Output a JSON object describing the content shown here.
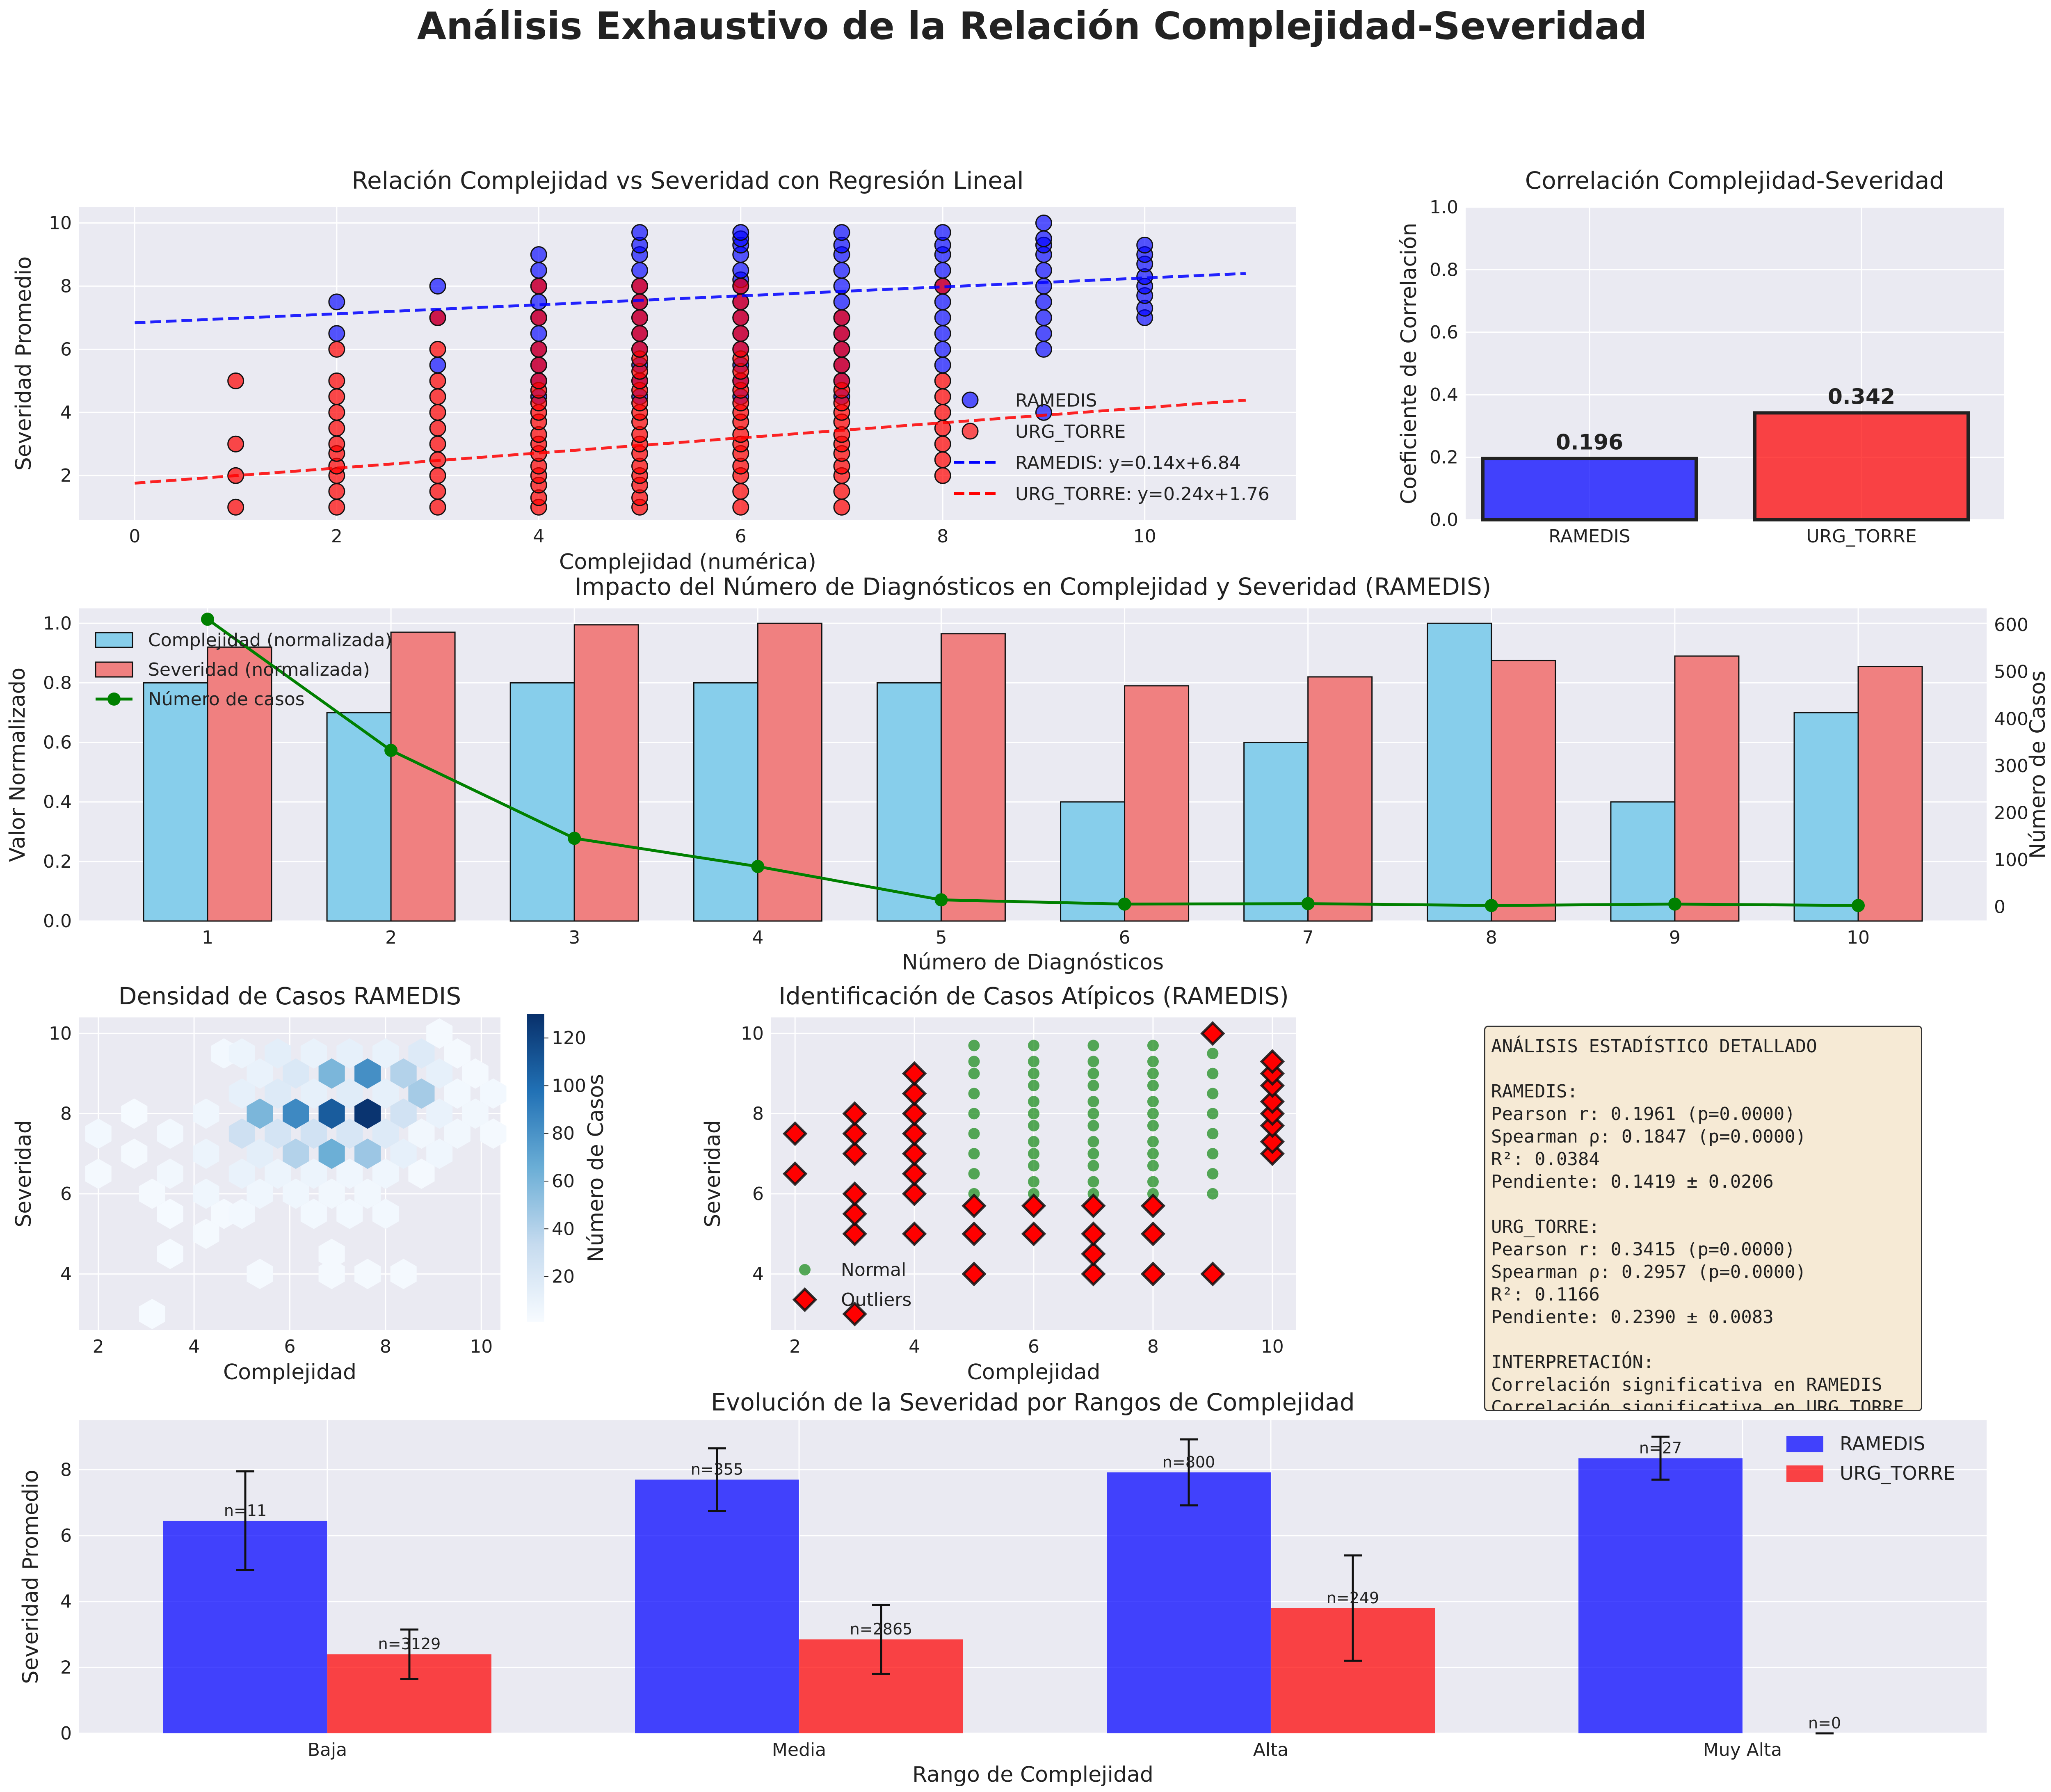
{
  "figure": {
    "title": "Análisis Exhaustivo de la Relación Complejidad-Severidad"
  },
  "colors": {
    "ramedis": "#0000ff",
    "urg": "#ff0000",
    "light_blue": "#87ceeb",
    "light_red": "#f08080",
    "green": "#008000",
    "panel_bg": "#eaeaf2"
  },
  "stats_box": {
    "lines": [
      "ANÁLISIS ESTADÍSTICO DETALLADO",
      "",
      "RAMEDIS:",
      "Pearson r: 0.1961 (p=0.0000)",
      "Spearman ρ: 0.1847 (p=0.0000)",
      "R²: 0.0384",
      "Pendiente: 0.1419 ± 0.0206",
      "",
      "URG_TORRE:",
      "Pearson r: 0.3415 (p=0.0000)",
      "Spearman ρ: 0.2957 (p=0.0000)",
      "R²: 0.1166",
      "Pendiente: 0.2390 ± 0.0083",
      "",
      "INTERPRETACIÓN:",
      "Correlación significativa en RAMEDIS",
      "Correlación significativa en URG_TORRE"
    ]
  },
  "chart_data": [
    {
      "id": "scatter_regression",
      "type": "scatter",
      "title": "Relación Complejidad vs Severidad con Regresión Lineal",
      "xlabel": "Complejidad (numérica)",
      "ylabel": "Severidad Promedio",
      "xlim": [
        -0.55,
        11.5
      ],
      "ylim": [
        0.6,
        10.5
      ],
      "xticks": [
        0,
        2,
        4,
        6,
        8,
        10
      ],
      "yticks": [
        2,
        4,
        6,
        8,
        10
      ],
      "legend": "center-right",
      "series": [
        {
          "name": "RAMEDIS",
          "color": "#0000ff",
          "points": {
            "2": [
              6.5,
              7.5
            ],
            "3": [
              5.5,
              7,
              8
            ],
            "4": [
              4.5,
              5,
              5.5,
              6,
              6.5,
              7,
              7.5,
              8,
              8.5,
              9
            ],
            "5": [
              4.5,
              5,
              5.5,
              6,
              6.5,
              7,
              7.5,
              8,
              8.5,
              9,
              9.3,
              9.7
            ],
            "6": [
              4.5,
              5,
              5.5,
              6,
              6.5,
              7,
              7.5,
              8,
              8.2,
              8.5,
              9,
              9.3,
              9.5,
              9.7
            ],
            "7": [
              4.5,
              5,
              5.5,
              6,
              6.5,
              7,
              7.5,
              8,
              8.5,
              9,
              9.3,
              9.7
            ],
            "8": [
              5.5,
              6,
              6.5,
              7,
              7.5,
              8,
              8.5,
              9,
              9.3,
              9.7
            ],
            "9": [
              4,
              6,
              6.5,
              7,
              7.5,
              8,
              8.5,
              9,
              9.3,
              9.5,
              10
            ],
            "10": [
              7,
              7.3,
              7.7,
              8,
              8.3,
              8.7,
              9,
              9.3
            ]
          }
        },
        {
          "name": "URG_TORRE",
          "color": "#ff0000",
          "points": {
            "1": [
              1,
              2,
              3,
              5
            ],
            "2": [
              1,
              1.5,
              2,
              2.3,
              2.7,
              3,
              3.5,
              4,
              4.5,
              5,
              6
            ],
            "3": [
              1,
              1.5,
              2,
              2.5,
              3,
              3.5,
              4,
              4.5,
              5,
              6,
              7
            ],
            "4": [
              1,
              1.3,
              1.7,
              2,
              2.3,
              2.7,
              3,
              3.3,
              3.7,
              4,
              4.3,
              4.7,
              5,
              5.5,
              6,
              7,
              8
            ],
            "5": [
              1,
              1.3,
              1.7,
              2,
              2.3,
              2.7,
              3,
              3.3,
              3.7,
              4,
              4.3,
              4.7,
              5,
              5.3,
              5.7,
              6,
              6.5,
              7,
              7.5,
              8
            ],
            "6": [
              1,
              1.5,
              2,
              2.3,
              2.7,
              3,
              3.3,
              3.7,
              4,
              4.3,
              4.7,
              5,
              5.3,
              5.7,
              6,
              6.5,
              7,
              7.5,
              8
            ],
            "7": [
              1,
              1.5,
              2,
              2.3,
              2.7,
              3,
              3.3,
              3.7,
              4,
              4.3,
              4.7,
              5,
              5.5,
              6,
              6.5,
              7
            ],
            "8": [
              2,
              2.5,
              3,
              3.5,
              4,
              4.5,
              5,
              8
            ]
          }
        }
      ],
      "regression": [
        {
          "name": "RAMEDIS: y=0.14x+6.84",
          "slope": 0.1419,
          "intercept": 6.84,
          "x": [
            0,
            11
          ],
          "color": "#0000ff"
        },
        {
          "name": "URG_TORRE: y=0.24x+1.76",
          "slope": 0.239,
          "intercept": 1.76,
          "x": [
            0,
            11
          ],
          "color": "#ff0000"
        }
      ]
    },
    {
      "id": "correlation_bars",
      "type": "bar",
      "title": "Correlación Complejidad-Severidad",
      "xlabel": "",
      "ylabel": "Coeficiente de Correlación",
      "categories": [
        "RAMEDIS",
        "URG_TORRE"
      ],
      "values": [
        0.196,
        0.342
      ],
      "labels": [
        "0.196",
        "0.342"
      ],
      "colors": [
        "#0000ff",
        "#ff0000"
      ],
      "ylim": [
        0,
        1
      ],
      "yticks": [
        0.0,
        0.2,
        0.4,
        0.6,
        0.8,
        1.0
      ]
    },
    {
      "id": "diagnostics_impact",
      "type": "bar",
      "title": "Impacto del Número de Diagnósticos en Complejidad y Severidad (RAMEDIS)",
      "xlabel": "Número de Diagnósticos",
      "ylabel": "Valor Normalizado",
      "ylabel_right": "Número de Casos",
      "categories": [
        "1",
        "2",
        "3",
        "4",
        "5",
        "6",
        "7",
        "8",
        "9",
        "10"
      ],
      "series": [
        {
          "name": "Complejidad (normalizada)",
          "color": "#87ceeb",
          "values": [
            0.8,
            0.7,
            0.8,
            0.8,
            0.8,
            0.4,
            0.6,
            1.0,
            0.4,
            0.7
          ]
        },
        {
          "name": "Severidad (normalizada)",
          "color": "#f08080",
          "values": [
            0.92,
            0.97,
            0.995,
            1.0,
            0.965,
            0.79,
            0.82,
            0.875,
            0.89,
            0.855
          ]
        },
        {
          "name": "Número de casos",
          "color": "#008000",
          "axis": "right",
          "values": [
            612,
            333,
            146,
            86,
            15,
            6,
            7,
            3,
            6,
            3
          ]
        }
      ],
      "ylim": [
        0,
        1.05
      ],
      "yticks": [
        0.0,
        0.2,
        0.4,
        0.6,
        0.8,
        1.0
      ],
      "ylim_right": [
        -30,
        635
      ],
      "yticks_right": [
        0,
        100,
        200,
        300,
        400,
        500,
        600
      ],
      "legend": "top-left"
    },
    {
      "id": "density_hexbin",
      "type": "heatmap",
      "title": "Densidad de Casos RAMEDIS",
      "xlabel": "Complejidad",
      "ylabel": "Severidad",
      "colorbar_label": "Número de Casos",
      "colorbar_ticks": [
        20,
        40,
        60,
        80,
        100,
        120
      ],
      "colorbar_range": [
        1,
        130
      ],
      "xlim": [
        1.6,
        10.4
      ],
      "ylim": [
        2.6,
        10.4
      ],
      "xticks": [
        2,
        4,
        6,
        8,
        10
      ],
      "yticks": [
        4,
        6,
        8,
        10
      ],
      "cells": [
        {
          "x": 2,
          "y": 6.5,
          "v": 3
        },
        {
          "x": 2,
          "y": 7.5,
          "v": 4
        },
        {
          "x": 2.75,
          "y": 7,
          "v": 3
        },
        {
          "x": 2.75,
          "y": 8,
          "v": 2
        },
        {
          "x": 3.5,
          "y": 5.5,
          "v": 2
        },
        {
          "x": 3.5,
          "y": 6.5,
          "v": 5
        },
        {
          "x": 3.5,
          "y": 7.5,
          "v": 4
        },
        {
          "x": 3.5,
          "y": 4.5,
          "v": 2
        },
        {
          "x": 3.125,
          "y": 3,
          "v": 2
        },
        {
          "x": 3.125,
          "y": 6,
          "v": 3
        },
        {
          "x": 4.25,
          "y": 6,
          "v": 6
        },
        {
          "x": 4.25,
          "y": 7,
          "v": 8
        },
        {
          "x": 4.25,
          "y": 8,
          "v": 6
        },
        {
          "x": 4.25,
          "y": 5,
          "v": 3
        },
        {
          "x": 4.625,
          "y": 5.5,
          "v": 3
        },
        {
          "x": 4.625,
          "y": 9.5,
          "v": 4
        },
        {
          "x": 5,
          "y": 5.5,
          "v": 4
        },
        {
          "x": 5,
          "y": 6.5,
          "v": 10
        },
        {
          "x": 5,
          "y": 7.5,
          "v": 28
        },
        {
          "x": 5,
          "y": 8.5,
          "v": 12
        },
        {
          "x": 5,
          "y": 9.5,
          "v": 8
        },
        {
          "x": 5.375,
          "y": 7,
          "v": 14
        },
        {
          "x": 5.375,
          "y": 8,
          "v": 60
        },
        {
          "x": 5.375,
          "y": 9,
          "v": 10
        },
        {
          "x": 5.375,
          "y": 6,
          "v": 6
        },
        {
          "x": 5.375,
          "y": 4,
          "v": 3
        },
        {
          "x": 5.75,
          "y": 6.5,
          "v": 8
        },
        {
          "x": 5.75,
          "y": 7.5,
          "v": 24
        },
        {
          "x": 5.75,
          "y": 8.5,
          "v": 18
        },
        {
          "x": 5.75,
          "y": 9.5,
          "v": 14
        },
        {
          "x": 6.125,
          "y": 6,
          "v": 6
        },
        {
          "x": 6.125,
          "y": 7,
          "v": 40
        },
        {
          "x": 6.125,
          "y": 8,
          "v": 85
        },
        {
          "x": 6.125,
          "y": 9,
          "v": 20
        },
        {
          "x": 6.5,
          "y": 5.5,
          "v": 4
        },
        {
          "x": 6.5,
          "y": 6.5,
          "v": 8
        },
        {
          "x": 6.5,
          "y": 7.5,
          "v": 26
        },
        {
          "x": 6.5,
          "y": 8.5,
          "v": 12
        },
        {
          "x": 6.5,
          "y": 9.5,
          "v": 10
        },
        {
          "x": 6.875,
          "y": 4,
          "v": 3
        },
        {
          "x": 6.875,
          "y": 6,
          "v": 5
        },
        {
          "x": 6.875,
          "y": 7,
          "v": 65
        },
        {
          "x": 6.875,
          "y": 8,
          "v": 108
        },
        {
          "x": 6.875,
          "y": 9,
          "v": 60
        },
        {
          "x": 6.875,
          "y": 4.5,
          "v": 3
        },
        {
          "x": 7.25,
          "y": 5.5,
          "v": 4
        },
        {
          "x": 7.25,
          "y": 6.5,
          "v": 6
        },
        {
          "x": 7.25,
          "y": 7.5,
          "v": 22
        },
        {
          "x": 7.25,
          "y": 8.5,
          "v": 16
        },
        {
          "x": 7.25,
          "y": 9.5,
          "v": 12
        },
        {
          "x": 7.625,
          "y": 4,
          "v": 3
        },
        {
          "x": 7.625,
          "y": 6,
          "v": 5
        },
        {
          "x": 7.625,
          "y": 7,
          "v": 48
        },
        {
          "x": 7.625,
          "y": 8,
          "v": 128
        },
        {
          "x": 7.625,
          "y": 9,
          "v": 82
        },
        {
          "x": 8,
          "y": 5.5,
          "v": 4
        },
        {
          "x": 8,
          "y": 6.5,
          "v": 6
        },
        {
          "x": 8,
          "y": 7.5,
          "v": 18
        },
        {
          "x": 8,
          "y": 8.5,
          "v": 12
        },
        {
          "x": 8,
          "y": 9.5,
          "v": 10
        },
        {
          "x": 8.375,
          "y": 4,
          "v": 3
        },
        {
          "x": 8.375,
          "y": 7,
          "v": 12
        },
        {
          "x": 8.375,
          "y": 8,
          "v": 26
        },
        {
          "x": 8.375,
          "y": 9,
          "v": 40
        },
        {
          "x": 8.75,
          "y": 7.5,
          "v": 5
        },
        {
          "x": 8.75,
          "y": 8.5,
          "v": 45
        },
        {
          "x": 8.75,
          "y": 9.5,
          "v": 18
        },
        {
          "x": 8.75,
          "y": 6.5,
          "v": 3
        },
        {
          "x": 9.125,
          "y": 7,
          "v": 6
        },
        {
          "x": 9.125,
          "y": 8,
          "v": 10
        },
        {
          "x": 9.125,
          "y": 9,
          "v": 12
        },
        {
          "x": 9.125,
          "y": 10,
          "v": 3
        },
        {
          "x": 9.5,
          "y": 7.5,
          "v": 5
        },
        {
          "x": 9.5,
          "y": 8.5,
          "v": 4
        },
        {
          "x": 9.5,
          "y": 9.5,
          "v": 3
        },
        {
          "x": 9.875,
          "y": 8,
          "v": 5
        },
        {
          "x": 9.875,
          "y": 9,
          "v": 3
        },
        {
          "x": 10.25,
          "y": 7.5,
          "v": 3
        },
        {
          "x": 10.25,
          "y": 8.5,
          "v": 4
        }
      ]
    },
    {
      "id": "outliers_scatter",
      "type": "scatter",
      "title": "Identificación de Casos Atípicos (RAMEDIS)",
      "xlabel": "Complejidad",
      "ylabel": "Severidad",
      "xlim": [
        1.6,
        10.4
      ],
      "ylim": [
        2.6,
        10.4
      ],
      "xticks": [
        2,
        4,
        6,
        8,
        10
      ],
      "yticks": [
        4,
        6,
        8,
        10
      ],
      "legend": "bottom-left",
      "series": [
        {
          "name": "Normal",
          "color": "#008000",
          "points": {
            "5": [
              6,
              6.5,
              7,
              7.5,
              8,
              8.5,
              9,
              9.3,
              9.7
            ],
            "6": [
              6,
              6.3,
              6.7,
              7,
              7.3,
              7.7,
              8,
              8.3,
              8.7,
              9,
              9.3,
              9.7
            ],
            "7": [
              6,
              6.3,
              6.7,
              7,
              7.3,
              7.7,
              8,
              8.3,
              8.7,
              9,
              9.3,
              9.7
            ],
            "8": [
              6,
              6.3,
              6.7,
              7,
              7.3,
              7.7,
              8,
              8.3,
              8.7,
              9,
              9.3,
              9.7
            ],
            "9": [
              6,
              6.5,
              7,
              7.5,
              8,
              8.5,
              9,
              9.5
            ]
          }
        },
        {
          "name": "Outliers",
          "color": "#ff0000",
          "points": {
            "2": [
              6.5,
              7.5
            ],
            "3": [
              3,
              5,
              5.5,
              6,
              7,
              7.5,
              8
            ],
            "4": [
              5,
              6,
              6.5,
              7,
              7.5,
              8,
              8.5,
              9
            ],
            "5": [
              4,
              5,
              5.7
            ],
            "6": [
              5,
              5.7
            ],
            "7": [
              4,
              4.5,
              5,
              5.7
            ],
            "8": [
              4,
              5,
              5.7
            ],
            "9": [
              4,
              10
            ],
            "10": [
              7,
              7.3,
              7.7,
              8,
              8.3,
              8.7,
              9,
              9.3
            ]
          }
        }
      ]
    },
    {
      "id": "severity_by_range",
      "type": "bar",
      "title": "Evolución de la Severidad por Rangos de Complejidad",
      "xlabel": "Rango de Complejidad",
      "ylabel": "Severidad Promedio",
      "categories": [
        "Baja",
        "Media",
        "Alta",
        "Muy Alta"
      ],
      "series": [
        {
          "name": "RAMEDIS",
          "color": "#0000ff",
          "values": [
            6.45,
            7.7,
            7.92,
            8.35
          ],
          "errors": [
            1.5,
            0.95,
            1.0,
            0.65
          ],
          "n_labels": [
            "n=11",
            "n=355",
            "n=800",
            "n=27"
          ]
        },
        {
          "name": "URG_TORRE",
          "color": "#ff0000",
          "values": [
            2.4,
            2.85,
            3.8,
            0
          ],
          "errors": [
            0.75,
            1.05,
            1.6,
            0
          ],
          "n_labels": [
            "n=3129",
            "n=2865",
            "n=249",
            "n=0"
          ]
        }
      ],
      "ylim": [
        0,
        9.5
      ],
      "yticks": [
        0,
        2,
        4,
        6,
        8
      ],
      "legend": "top-right"
    }
  ]
}
